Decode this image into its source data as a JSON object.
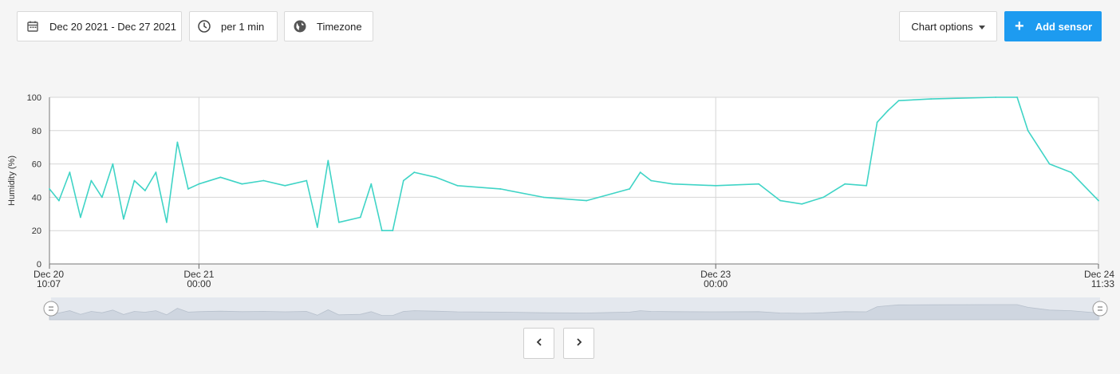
{
  "toolbar": {
    "date_range": "Dec 20 2021 - Dec 27 2021",
    "interval": "per 1 min",
    "timezone": "Timezone",
    "chart_options": "Chart options",
    "add_sensor": "Add sensor"
  },
  "icons": {
    "date": "calendar-icon",
    "interval": "clock-icon",
    "timezone": "globe-icon",
    "add": "plus-icon",
    "prev": "chevron-left-icon",
    "next": "chevron-right-icon"
  },
  "colors": {
    "series": "#3fd4c6",
    "accent": "#1d9bf0",
    "navigator_fill": "#cfd6e0"
  },
  "chart_data": {
    "type": "line",
    "ylabel": "Humidity (%)",
    "ylim": [
      0,
      100
    ],
    "yticks": [
      "0",
      "20",
      "40",
      "60",
      "80",
      "100"
    ],
    "xlim": [
      "2021-12-20 10:07",
      "2021-12-24 11:33"
    ],
    "xticks": [
      {
        "x": "2021-12-20 10:07",
        "l1": "Dec 20",
        "l2": "10:07"
      },
      {
        "x": "2021-12-21 00:00",
        "l1": "Dec 21",
        "l2": "00:00"
      },
      {
        "x": "2021-12-23 00:00",
        "l1": "Dec 23",
        "l2": "00:00"
      },
      {
        "x": "2021-12-24 11:33",
        "l1": "Dec 24",
        "l2": "11:33"
      }
    ],
    "grid": true,
    "series": [
      {
        "values": [
          [
            "2021-12-20 10:07",
            45
          ],
          [
            "2021-12-20 11:00",
            38
          ],
          [
            "2021-12-20 12:00",
            55
          ],
          [
            "2021-12-20 13:00",
            28
          ],
          [
            "2021-12-20 14:00",
            50
          ],
          [
            "2021-12-20 15:00",
            40
          ],
          [
            "2021-12-20 16:00",
            60
          ],
          [
            "2021-12-20 17:00",
            27
          ],
          [
            "2021-12-20 18:00",
            50
          ],
          [
            "2021-12-20 19:00",
            44
          ],
          [
            "2021-12-20 20:00",
            55
          ],
          [
            "2021-12-20 21:00",
            25
          ],
          [
            "2021-12-20 22:00",
            73
          ],
          [
            "2021-12-20 23:00",
            45
          ],
          [
            "2021-12-21 00:00",
            48
          ],
          [
            "2021-12-21 02:00",
            52
          ],
          [
            "2021-12-21 04:00",
            48
          ],
          [
            "2021-12-21 06:00",
            50
          ],
          [
            "2021-12-21 08:00",
            47
          ],
          [
            "2021-12-21 10:00",
            50
          ],
          [
            "2021-12-21 11:00",
            22
          ],
          [
            "2021-12-21 12:00",
            62
          ],
          [
            "2021-12-21 13:00",
            25
          ],
          [
            "2021-12-21 15:00",
            28
          ],
          [
            "2021-12-21 16:00",
            48
          ],
          [
            "2021-12-21 17:00",
            20
          ],
          [
            "2021-12-21 18:00",
            20
          ],
          [
            "2021-12-21 19:00",
            50
          ],
          [
            "2021-12-21 20:00",
            55
          ],
          [
            "2021-12-21 22:00",
            52
          ],
          [
            "2021-12-22 00:00",
            47
          ],
          [
            "2021-12-22 04:00",
            45
          ],
          [
            "2021-12-22 08:00",
            40
          ],
          [
            "2021-12-22 12:00",
            38
          ],
          [
            "2021-12-22 16:00",
            45
          ],
          [
            "2021-12-22 17:00",
            55
          ],
          [
            "2021-12-22 18:00",
            50
          ],
          [
            "2021-12-22 20:00",
            48
          ],
          [
            "2021-12-23 00:00",
            47
          ],
          [
            "2021-12-23 04:00",
            48
          ],
          [
            "2021-12-23 06:00",
            38
          ],
          [
            "2021-12-23 08:00",
            36
          ],
          [
            "2021-12-23 10:00",
            40
          ],
          [
            "2021-12-23 12:00",
            48
          ],
          [
            "2021-12-23 14:00",
            47
          ],
          [
            "2021-12-23 15:00",
            85
          ],
          [
            "2021-12-23 16:00",
            92
          ],
          [
            "2021-12-23 17:00",
            98
          ],
          [
            "2021-12-23 20:00",
            99
          ],
          [
            "2021-12-24 02:00",
            100
          ],
          [
            "2021-12-24 04:00",
            100
          ],
          [
            "2021-12-24 05:00",
            80
          ],
          [
            "2021-12-24 07:00",
            60
          ],
          [
            "2021-12-24 09:00",
            55
          ],
          [
            "2021-12-24 11:33",
            38
          ]
        ]
      }
    ]
  }
}
